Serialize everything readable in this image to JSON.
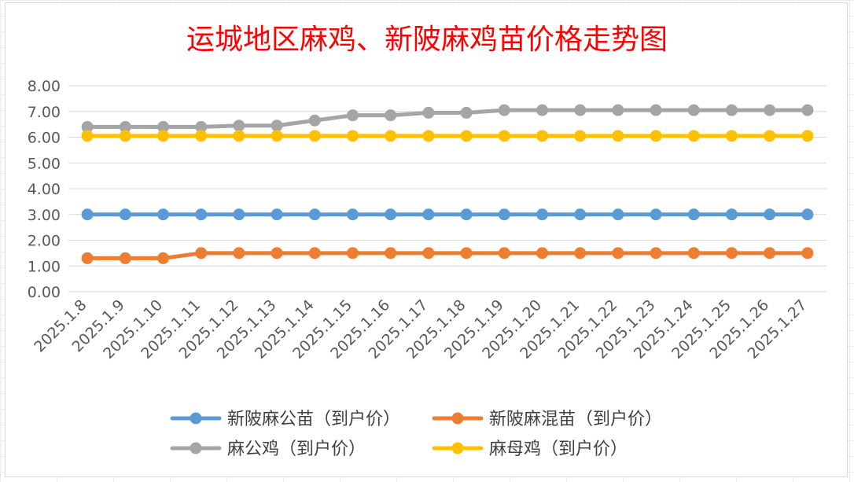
{
  "chart_data": {
    "type": "line",
    "title": "运城地区麻鸡、新陂麻鸡苗价格走势图",
    "title_color": "#ff0000",
    "categories": [
      "2025.1.8",
      "2025.1.9",
      "2025.1.10",
      "2025.1.11",
      "2025.1.12",
      "2025.1.13",
      "2025.1.14",
      "2025.1.15",
      "2025.1.16",
      "2025.1.17",
      "2025.1.18",
      "2025.1.19",
      "2025.1.20",
      "2025.1.21",
      "2025.1.22",
      "2025.1.23",
      "2025.1.24",
      "2025.1.25",
      "2025.1.26",
      "2025.1.27"
    ],
    "ylim": [
      0,
      8
    ],
    "yticks": [
      "0.00",
      "1.00",
      "2.00",
      "3.00",
      "4.00",
      "5.00",
      "6.00",
      "7.00",
      "8.00"
    ],
    "grid": true,
    "legend_position": "bottom",
    "series": [
      {
        "name": "新陂麻公苗（到户价）",
        "color": "#5b9bd5",
        "values": [
          3,
          3,
          3,
          3,
          3,
          3,
          3,
          3,
          3,
          3,
          3,
          3,
          3,
          3,
          3,
          3,
          3,
          3,
          3,
          3
        ]
      },
      {
        "name": "新陂麻混苗（到户价）",
        "color": "#ed7d31",
        "values": [
          1.3,
          1.3,
          1.3,
          1.5,
          1.5,
          1.5,
          1.5,
          1.5,
          1.5,
          1.5,
          1.5,
          1.5,
          1.5,
          1.5,
          1.5,
          1.5,
          1.5,
          1.5,
          1.5,
          1.5
        ]
      },
      {
        "name": "麻公鸡（到户价）",
        "color": "#a5a5a5",
        "values": [
          6.4,
          6.4,
          6.4,
          6.4,
          6.45,
          6.45,
          6.65,
          6.85,
          6.85,
          6.95,
          6.95,
          7.05,
          7.05,
          7.05,
          7.05,
          7.05,
          7.05,
          7.05,
          7.05,
          7.05
        ]
      },
      {
        "name": "麻母鸡（到户价）",
        "color": "#ffc000",
        "values": [
          6.05,
          6.05,
          6.05,
          6.05,
          6.05,
          6.05,
          6.05,
          6.05,
          6.05,
          6.05,
          6.05,
          6.05,
          6.05,
          6.05,
          6.05,
          6.05,
          6.05,
          6.05,
          6.05,
          6.05
        ]
      }
    ]
  }
}
